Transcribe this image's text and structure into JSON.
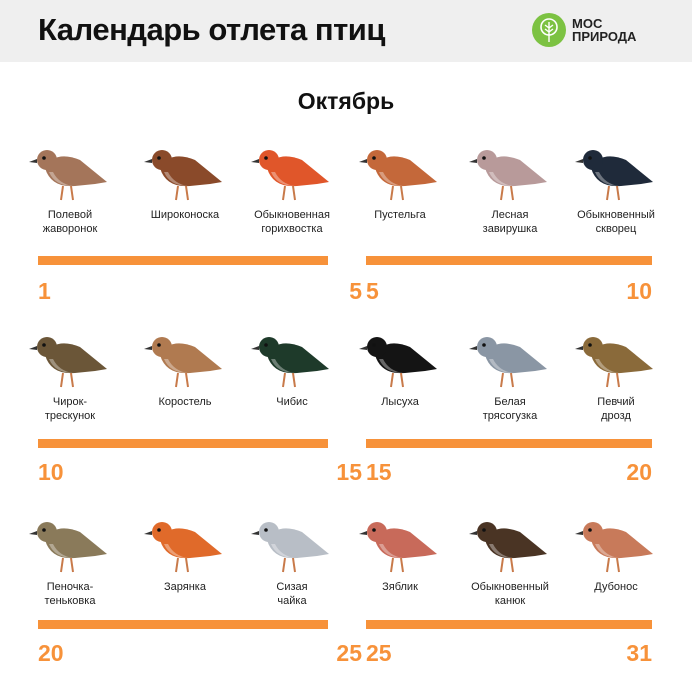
{
  "header": {
    "title": "Календарь отлета птиц",
    "logo_text": "МОС\nПРИРОДА"
  },
  "month": "Октябрь",
  "accent_color": "#f7923a",
  "groups": [
    {
      "start": "1",
      "end": "5",
      "birds": [
        {
          "name": "Полевой\nжаворонок",
          "color": "#a4755a"
        },
        {
          "name": "Широконоска",
          "color": "#8a4a2a"
        },
        {
          "name": "Обыкновенная\nгорихвостка",
          "color": "#e0562a"
        }
      ]
    },
    {
      "start": "5",
      "end": "10",
      "birds": [
        {
          "name": "Пустельга",
          "color": "#c4683a"
        },
        {
          "name": "Лесная\nзавирушка",
          "color": "#b89a9a"
        },
        {
          "name": "Обыкновенный\nскворец",
          "color": "#1f2a3a"
        }
      ]
    },
    {
      "start": "10",
      "end": "15",
      "birds": [
        {
          "name": "Чирок-\nтрескунок",
          "color": "#6b5638"
        },
        {
          "name": "Коростель",
          "color": "#b07a50"
        },
        {
          "name": "Чибис",
          "color": "#1e3a2a"
        }
      ]
    },
    {
      "start": "15",
      "end": "20",
      "birds": [
        {
          "name": "Лысуха",
          "color": "#141414"
        },
        {
          "name": "Белая\nтрясогузка",
          "color": "#8a96a4"
        },
        {
          "name": "Певчий\nдрозд",
          "color": "#8a6a3a"
        }
      ]
    },
    {
      "start": "20",
      "end": "25",
      "birds": [
        {
          "name": "Пеночка-\nтеньковка",
          "color": "#8a7a5a"
        },
        {
          "name": "Зарянка",
          "color": "#e06a2a"
        },
        {
          "name": "Сизая\nчайка",
          "color": "#b8bec6"
        }
      ]
    },
    {
      "start": "25",
      "end": "31",
      "birds": [
        {
          "name": "Зяблик",
          "color": "#c86a5a"
        },
        {
          "name": "Обыкновенный\nканюк",
          "color": "#4a3424"
        },
        {
          "name": "Дубонос",
          "color": "#c87a5a"
        }
      ]
    }
  ]
}
